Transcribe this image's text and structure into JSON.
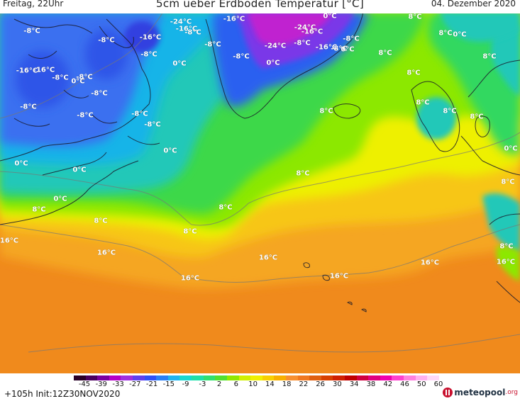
{
  "header": {
    "left": "Freitag, 22Uhr",
    "title": "5cm ueber Erdboden Temperatur [°C]",
    "right": "04. Dezember 2020"
  },
  "map_labels": [
    "-8°C",
    "-16°C",
    "-24°C",
    "-16°C",
    "-24°C",
    "-16°C",
    "-8°C",
    "-16°C",
    "-8°C",
    "0°C",
    "0°C",
    "8°C",
    "8°C",
    "-8°C",
    "-8°C",
    "-8°C",
    "-16°C",
    "-8°C",
    "0°C",
    "0°C",
    "-24°C",
    "-8°C",
    "-16°C",
    "-8°C",
    "0°C",
    "8°C",
    "-16°C",
    "-8°C",
    "0°C",
    "-8°C",
    "8°C",
    "-8°C",
    "-8°C",
    "-8°C",
    "8°C",
    "-8°C",
    "-8°C",
    "0°C",
    "0°C",
    "8°C",
    "0°C",
    "8°C",
    "8°C",
    "0°C",
    "8°C",
    "8°C",
    "8°C",
    "16°C",
    "16°C",
    "16°C",
    "16°C",
    "16°C",
    "16°C",
    "8°C",
    "16°C",
    "8°C",
    "0°C",
    "8°C",
    "8°C",
    "8°C"
  ],
  "legend": {
    "ticks": [
      "-45",
      "-39",
      "-33",
      "-27",
      "-21",
      "-15",
      "-9",
      "-3",
      "2",
      "6",
      "10",
      "14",
      "18",
      "22",
      "26",
      "30",
      "34",
      "38",
      "42",
      "46",
      "50",
      "60"
    ],
    "colors": [
      "#2a0028",
      "#4a0060",
      "#7a00a0",
      "#b400c8",
      "#a030e0",
      "#6040f0",
      "#3050f8",
      "#2a80f8",
      "#20b4f0",
      "#18d8d0",
      "#20e0a8",
      "#30e070",
      "#50e030",
      "#90e800",
      "#d0f000",
      "#f0f000",
      "#f8d000",
      "#f8b000",
      "#f89030",
      "#f07820",
      "#e06010",
      "#d84000",
      "#d02000",
      "#c00000",
      "#d00040",
      "#e00080",
      "#f000b0",
      "#ff40d0",
      "#ff80e0",
      "#ffb0f0",
      "#ffd8f8"
    ]
  },
  "footer": {
    "run_info": "+105h Init:12Z30NOV2020",
    "logo_text": "meteopool",
    "logo_suffix": ".org"
  }
}
